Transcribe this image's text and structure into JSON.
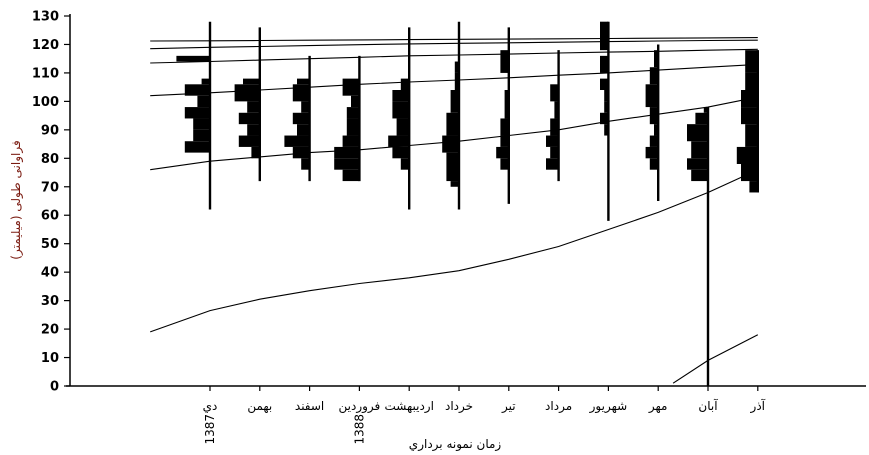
{
  "chart_data": {
    "type": "bar",
    "title": "",
    "ylabel": "فراوانی طولی (میلیمتر)",
    "xlabel": "زمان نمونه برداري",
    "ylim": [
      0,
      130
    ],
    "yticks": [
      0,
      10,
      20,
      30,
      40,
      50,
      60,
      70,
      80,
      90,
      100,
      110,
      120,
      130
    ],
    "ylabel_color": "#7a1a10",
    "months": [
      {
        "label": "دي",
        "year": "1387",
        "range": [
          62,
          128
        ],
        "hist": [
          [
            82,
            86,
            6
          ],
          [
            86,
            90,
            4
          ],
          [
            90,
            94,
            4
          ],
          [
            94,
            98,
            6
          ],
          [
            98,
            102,
            3
          ],
          [
            102,
            106,
            6
          ],
          [
            106,
            108,
            2
          ],
          [
            114,
            116,
            8
          ]
        ]
      },
      {
        "label": "بهمن",
        "year": "",
        "range": [
          72,
          126
        ],
        "hist": [
          [
            80,
            84,
            2
          ],
          [
            84,
            88,
            5
          ],
          [
            88,
            92,
            3
          ],
          [
            92,
            96,
            5
          ],
          [
            96,
            100,
            3
          ],
          [
            100,
            106,
            6
          ],
          [
            106,
            108,
            4
          ]
        ]
      },
      {
        "label": "اسفند",
        "year": "",
        "range": [
          72,
          116
        ],
        "hist": [
          [
            76,
            80,
            2
          ],
          [
            80,
            84,
            4
          ],
          [
            84,
            88,
            6
          ],
          [
            88,
            92,
            3
          ],
          [
            92,
            96,
            4
          ],
          [
            96,
            100,
            2
          ],
          [
            100,
            106,
            4
          ],
          [
            106,
            108,
            3
          ]
        ]
      },
      {
        "label": "فروردين",
        "year": "1388",
        "range": [
          72,
          116
        ],
        "hist": [
          [
            72,
            76,
            4
          ],
          [
            76,
            80,
            6
          ],
          [
            80,
            84,
            6
          ],
          [
            84,
            88,
            4
          ],
          [
            88,
            94,
            3
          ],
          [
            94,
            98,
            3
          ],
          [
            98,
            102,
            2
          ],
          [
            102,
            108,
            4
          ]
        ]
      },
      {
        "label": "ارديبهشت",
        "year": "",
        "range": [
          62,
          126
        ],
        "hist": [
          [
            76,
            80,
            2
          ],
          [
            80,
            84,
            4
          ],
          [
            84,
            88,
            5
          ],
          [
            88,
            94,
            3
          ],
          [
            94,
            100,
            4
          ],
          [
            100,
            104,
            4
          ],
          [
            104,
            108,
            2
          ]
        ]
      },
      {
        "label": "خرداد",
        "year": "",
        "range": [
          62,
          128
        ],
        "hist": [
          [
            70,
            72,
            2
          ],
          [
            72,
            82,
            3
          ],
          [
            82,
            88,
            4
          ],
          [
            88,
            96,
            3
          ],
          [
            96,
            104,
            2
          ],
          [
            104,
            110,
            1
          ],
          [
            110,
            114,
            1
          ]
        ]
      },
      {
        "label": "تير",
        "year": "",
        "range": [
          64,
          126
        ],
        "hist": [
          [
            76,
            80,
            2
          ],
          [
            80,
            84,
            3
          ],
          [
            84,
            88,
            2
          ],
          [
            88,
            94,
            2
          ],
          [
            94,
            104,
            1
          ],
          [
            110,
            118,
            2
          ]
        ]
      },
      {
        "label": "مرداد",
        "year": "",
        "range": [
          72,
          118
        ],
        "hist": [
          [
            76,
            80,
            3
          ],
          [
            80,
            84,
            2
          ],
          [
            84,
            88,
            3
          ],
          [
            88,
            94,
            2
          ],
          [
            94,
            100,
            1
          ],
          [
            100,
            106,
            2
          ]
        ]
      },
      {
        "label": "شهريور",
        "year": "",
        "range": [
          58,
          128
        ],
        "hist": [
          [
            88,
            92,
            1
          ],
          [
            92,
            96,
            2
          ],
          [
            96,
            100,
            1
          ],
          [
            100,
            104,
            1
          ],
          [
            104,
            108,
            2
          ],
          [
            110,
            116,
            2
          ],
          [
            118,
            128,
            2
          ]
        ]
      },
      {
        "label": "مهر",
        "year": "",
        "range": [
          65,
          120
        ],
        "hist": [
          [
            76,
            80,
            2
          ],
          [
            80,
            84,
            3
          ],
          [
            84,
            88,
            2
          ],
          [
            88,
            92,
            1
          ],
          [
            92,
            98,
            2
          ],
          [
            98,
            106,
            3
          ],
          [
            106,
            112,
            2
          ],
          [
            112,
            118,
            1
          ]
        ]
      },
      {
        "label": "آبان",
        "year": "",
        "range": [
          0,
          98
        ],
        "hist": [
          [
            72,
            76,
            4
          ],
          [
            76,
            80,
            5
          ],
          [
            80,
            86,
            4
          ],
          [
            86,
            92,
            5
          ],
          [
            92,
            96,
            3
          ],
          [
            96,
            98,
            1
          ]
        ]
      },
      {
        "label": "آذر",
        "year": "",
        "range": [
          68,
          118
        ],
        "hist": [
          [
            68,
            72,
            2
          ],
          [
            72,
            78,
            4
          ],
          [
            78,
            84,
            5
          ],
          [
            84,
            92,
            3
          ],
          [
            92,
            98,
            4
          ],
          [
            98,
            104,
            4
          ],
          [
            104,
            110,
            3
          ],
          [
            110,
            118,
            3
          ]
        ]
      }
    ],
    "cohorts": [
      {
        "x": [
          -1.2,
          0,
          1,
          2,
          3,
          4,
          5,
          6,
          7,
          8,
          9,
          10,
          11
        ],
        "y": [
          19,
          26.5,
          30.5,
          33.5,
          36,
          38,
          40.5,
          44.5,
          49,
          55,
          61,
          68,
          76
        ]
      },
      {
        "x": [
          9.3,
          10,
          11
        ],
        "y": [
          1,
          9,
          18
        ]
      },
      {
        "x": [
          -1.2,
          0,
          1,
          2,
          3,
          4,
          5,
          6,
          7,
          8,
          9,
          10,
          11
        ],
        "y": [
          76,
          79,
          80.5,
          82,
          83,
          84.5,
          86,
          88,
          90,
          93,
          95.5,
          98,
          101.5
        ]
      },
      {
        "x": [
          -1.2,
          0,
          1,
          2,
          3,
          4,
          5,
          6,
          7,
          8,
          9,
          10,
          11
        ],
        "y": [
          102,
          103,
          104,
          105,
          106,
          106.8,
          107.5,
          108.3,
          109.2,
          110,
          111,
          112,
          113
        ]
      },
      {
        "x": [
          -1.2,
          0,
          1,
          2,
          3,
          4,
          5,
          6,
          7,
          8,
          9,
          10,
          11
        ],
        "y": [
          113.5,
          114,
          114.5,
          115,
          115.5,
          116,
          116.3,
          116.6,
          117,
          117.3,
          117.6,
          118,
          118.3
        ]
      },
      {
        "x": [
          -1.2,
          0,
          1,
          2,
          3,
          4,
          5,
          6,
          7,
          8,
          9,
          10,
          11
        ],
        "y": [
          118.5,
          119,
          119.3,
          119.6,
          119.9,
          120.2,
          120.4,
          120.6,
          120.8,
          121,
          121.2,
          121.4,
          121.5
        ]
      },
      {
        "x": [
          -1.2,
          0,
          1,
          2,
          3,
          4,
          5,
          6,
          7,
          8,
          9,
          10,
          11
        ],
        "y": [
          121.2,
          121.3,
          121.4,
          121.5,
          121.6,
          121.7,
          121.8,
          121.9,
          122,
          122.1,
          122.2,
          122.3,
          122.4
        ]
      }
    ]
  }
}
